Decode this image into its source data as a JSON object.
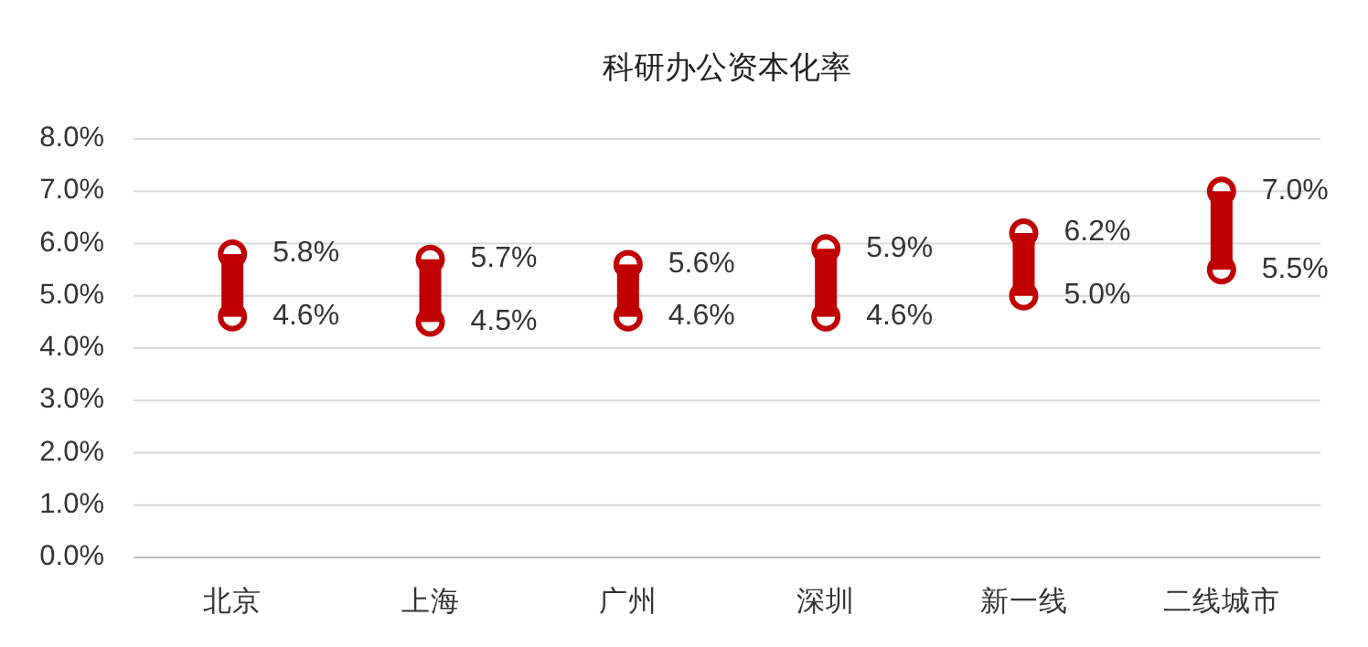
{
  "chart_data": {
    "type": "bar",
    "title": "科研办公资本化率",
    "categories": [
      "北京",
      "上海",
      "广州",
      "深圳",
      "新一线",
      "二线城市"
    ],
    "ylim": [
      0,
      8
    ],
    "yticks": [
      {
        "value": 0,
        "label": "0.0%"
      },
      {
        "value": 1,
        "label": "1.0%"
      },
      {
        "value": 2,
        "label": "2.0%"
      },
      {
        "value": 3,
        "label": "3.0%"
      },
      {
        "value": 4,
        "label": "4.0%"
      },
      {
        "value": 5,
        "label": "5.0%"
      },
      {
        "value": 6,
        "label": "6.0%"
      },
      {
        "value": 7,
        "label": "7.0%"
      },
      {
        "value": 8,
        "label": "8.0%"
      }
    ],
    "grid": "y",
    "series": [
      {
        "type": "scatter",
        "color": "#c00000",
        "marker": "circle",
        "values": [
          5.8,
          5.7,
          5.6,
          5.9,
          6.2,
          7.0
        ],
        "value_labels": [
          "5.8%",
          "5.7%",
          "5.6%",
          "5.9%",
          "6.2%",
          "7.0%"
        ]
      },
      {
        "type": "scatter",
        "color": "#c00000",
        "marker": "circle",
        "values": [
          4.6,
          4.5,
          4.6,
          4.6,
          5.0,
          5.5
        ],
        "value_labels": [
          "4.6%",
          "4.5%",
          "4.6%",
          "4.6%",
          "5.0%",
          "5.5%"
        ]
      },
      {
        "color": "#c00000",
        "base": [
          4.6,
          4.5,
          4.6,
          4.6,
          5.0,
          5.5
        ],
        "values": [
          1.2,
          1.2,
          1.0,
          1.3,
          1.2,
          1.5
        ]
      }
    ]
  }
}
